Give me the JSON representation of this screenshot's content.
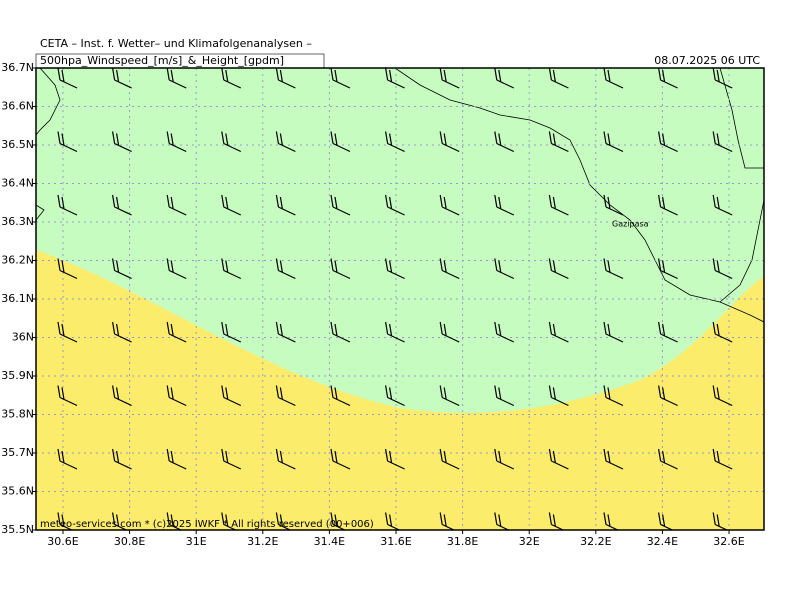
{
  "header": {
    "title": "CETA – Inst. f. Wetter– und Klimafolgenanalysen –",
    "subtitle": "500hpa_Windspeed_[m/s]_&_Height_[gpdm]",
    "date": "08.07.2025 06 UTC"
  },
  "map": {
    "xlim": [
      30.519,
      32.705
    ],
    "ylim": [
      35.5,
      36.7
    ],
    "xticks": [
      {
        "value": 30.6,
        "label": "30.6E"
      },
      {
        "value": 30.8,
        "label": "30.8E"
      },
      {
        "value": 31,
        "label": "31E"
      },
      {
        "value": 31.2,
        "label": "31.2E"
      },
      {
        "value": 31.4,
        "label": "31.4E"
      },
      {
        "value": 31.6,
        "label": "31.6E"
      },
      {
        "value": 31.8,
        "label": "31.8E"
      },
      {
        "value": 32,
        "label": "32E"
      },
      {
        "value": 32.2,
        "label": "32.2E"
      },
      {
        "value": 32.4,
        "label": "32.4E"
      },
      {
        "value": 32.6,
        "label": "32.6E"
      }
    ],
    "yticks": [
      {
        "value": 35.5,
        "label": "35.5N"
      },
      {
        "value": 35.6,
        "label": "35.6N"
      },
      {
        "value": 35.7,
        "label": "35.7N"
      },
      {
        "value": 35.8,
        "label": "35.8N"
      },
      {
        "value": 35.9,
        "label": "35.9N"
      },
      {
        "value": 36,
        "label": "36N"
      },
      {
        "value": 36.1,
        "label": "36.1N"
      },
      {
        "value": 36.2,
        "label": "36.2N"
      },
      {
        "value": 36.3,
        "label": "36.3N"
      },
      {
        "value": 36.4,
        "label": "36.4N"
      },
      {
        "value": 36.5,
        "label": "36.5N"
      },
      {
        "value": 36.6,
        "label": "36.6N"
      },
      {
        "value": 36.7,
        "label": "36.7N"
      }
    ],
    "place": "Gazipasa",
    "footer": "meteo-services.com * (c)2025 IWKF * All rights reserved (00+006)"
  }
}
